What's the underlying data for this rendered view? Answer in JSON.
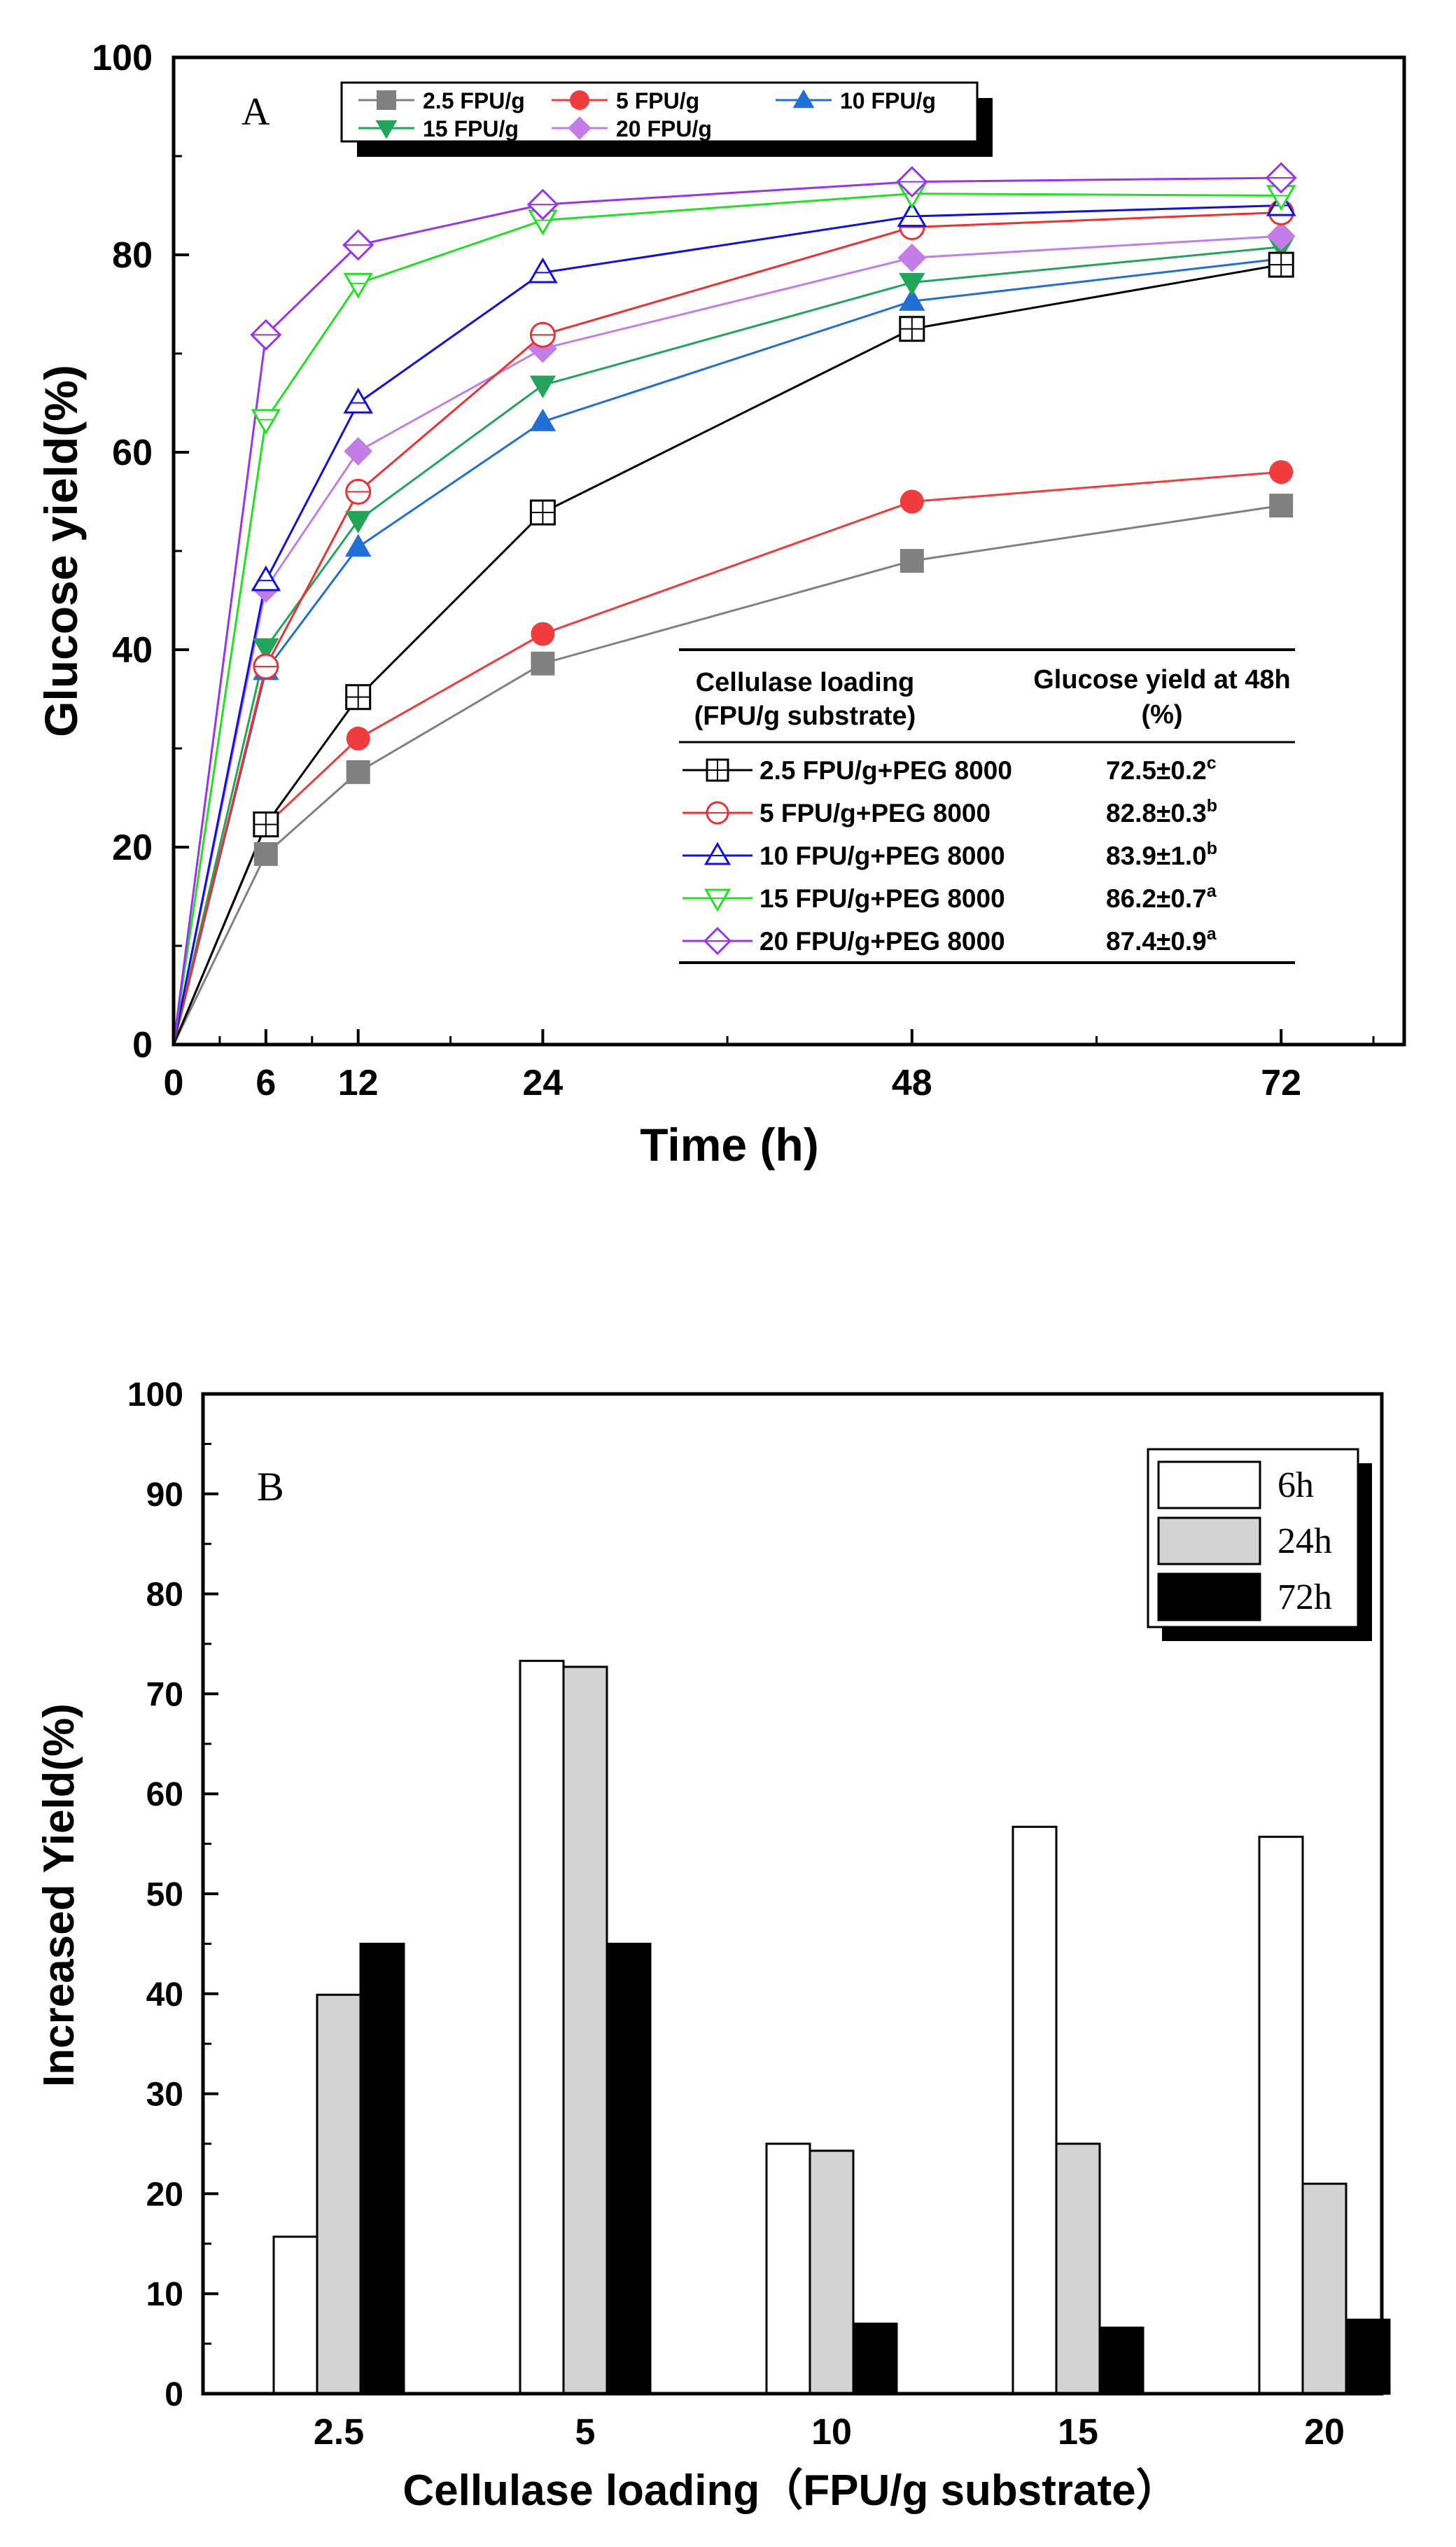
{
  "chart_data": [
    {
      "panel_label": "A",
      "type": "line",
      "xlabel": "Time (h)",
      "ylabel": "Glucose yield(%)",
      "xlim": [
        0,
        80
      ],
      "ylim": [
        0,
        100
      ],
      "xticks": [
        0,
        6,
        12,
        24,
        48,
        72
      ],
      "xtick_labels": [
        "0",
        "6",
        "12",
        "24",
        "48",
        "72"
      ],
      "yticks": [
        0,
        20,
        40,
        60,
        80,
        100
      ],
      "ytick_labels": [
        "0",
        "20",
        "40",
        "60",
        "80",
        "100"
      ],
      "x": [
        0,
        6,
        12,
        24,
        48,
        72
      ],
      "series": [
        {
          "name": "2.5 FPU/g",
          "marker": "square",
          "filled": true,
          "color": "#808080",
          "values": [
            0,
            19.3,
            27.6,
            38.6,
            49.0,
            54.6
          ]
        },
        {
          "name": "5 FPU/g",
          "marker": "circle",
          "filled": true,
          "color": "#f03c3c",
          "values": [
            0,
            22.2,
            31.0,
            41.6,
            55.0,
            58.0
          ]
        },
        {
          "name": "10 FPU/g",
          "marker": "triangle-up",
          "filled": true,
          "color": "#1f6fd6",
          "values": [
            0,
            37.9,
            50.4,
            63.1,
            75.3,
            79.6
          ]
        },
        {
          "name": "15 FPU/g",
          "marker": "triangle-down",
          "filled": true,
          "color": "#22a45a",
          "values": [
            0,
            40.2,
            53.1,
            66.8,
            77.2,
            80.8
          ]
        },
        {
          "name": "20 FPU/g",
          "marker": "diamond",
          "filled": true,
          "color": "#c27ee6",
          "values": [
            0,
            46.2,
            60.1,
            70.5,
            79.7,
            81.9
          ]
        },
        {
          "name": "2.5 FPU/g+PEG 8000",
          "marker": "square",
          "filled": false,
          "color": "#000000",
          "values": [
            0,
            22.3,
            35.2,
            53.9,
            72.5,
            79.0
          ]
        },
        {
          "name": "5 FPU/g+PEG 8000",
          "marker": "circle",
          "filled": false,
          "color": "#f03030",
          "values": [
            0,
            38.3,
            56.0,
            71.9,
            82.8,
            84.3
          ]
        },
        {
          "name": "10 FPU/g+PEG 8000",
          "marker": "triangle-up",
          "filled": false,
          "color": "#1010e0",
          "values": [
            0,
            47.0,
            65.0,
            78.2,
            83.9,
            85.0
          ]
        },
        {
          "name": "15 FPU/g+PEG 8000",
          "marker": "triangle-down",
          "filled": false,
          "color": "#22e022",
          "values": [
            0,
            63.3,
            77.1,
            83.5,
            86.2,
            86.0
          ]
        },
        {
          "name": "20 FPU/g+PEG 8000",
          "marker": "diamond",
          "filled": false,
          "color": "#9933ee",
          "values": [
            0,
            71.9,
            81.0,
            85.1,
            87.4,
            87.8
          ]
        }
      ],
      "legend": {
        "placement": "top-left",
        "entries": [
          "2.5 FPU/g",
          "5 FPU/g",
          "10 FPU/g",
          "15 FPU/g",
          "20 FPU/g"
        ]
      },
      "inset_table": {
        "placement": "bottom-right",
        "header_col1_line1": "Cellulase loading",
        "header_col1_line2": "(FPU/g substrate)",
        "header_col2_line1": "Glucose yield at 48h",
        "header_col2_line2": "(%)",
        "rows": [
          {
            "label": "2.5 FPU/g+PEG 8000",
            "value": "72.5±0.2",
            "sup": "c"
          },
          {
            "label": "5 FPU/g+PEG 8000",
            "value": "82.8±0.3",
            "sup": "b"
          },
          {
            "label": "10 FPU/g+PEG 8000",
            "value": "83.9±1.0",
            "sup": "b"
          },
          {
            "label": "15 FPU/g+PEG 8000",
            "value": "86.2±0.7",
            "sup": "a"
          },
          {
            "label": "20 FPU/g+PEG 8000",
            "value": "87.4±0.9",
            "sup": "a"
          }
        ]
      }
    },
    {
      "panel_label": "B",
      "type": "bar",
      "xlabel": "Cellulase loading（FPU/g substrate）",
      "ylabel": "Increased Yield(%)",
      "ylim": [
        0,
        100
      ],
      "yticks": [
        0,
        10,
        20,
        30,
        40,
        50,
        60,
        70,
        80,
        90,
        100
      ],
      "ytick_labels": [
        "0",
        "10",
        "20",
        "30",
        "40",
        "50",
        "60",
        "70",
        "80",
        "90",
        "100"
      ],
      "categories": [
        "2.5",
        "5",
        "10",
        "15",
        "20"
      ],
      "series": [
        {
          "name": "6h",
          "color": "#ffffff",
          "values": [
            15.7,
            73.3,
            25.0,
            56.7,
            55.7
          ]
        },
        {
          "name": "24h",
          "color": "#d3d3d3",
          "values": [
            39.9,
            72.7,
            24.3,
            25.0,
            21.0
          ]
        },
        {
          "name": "72h",
          "color": "#000000",
          "values": [
            45.0,
            45.0,
            7.0,
            6.6,
            7.4
          ]
        }
      ],
      "legend": {
        "placement": "top-right",
        "entries": [
          "6h",
          "24h",
          "72h"
        ]
      }
    }
  ]
}
